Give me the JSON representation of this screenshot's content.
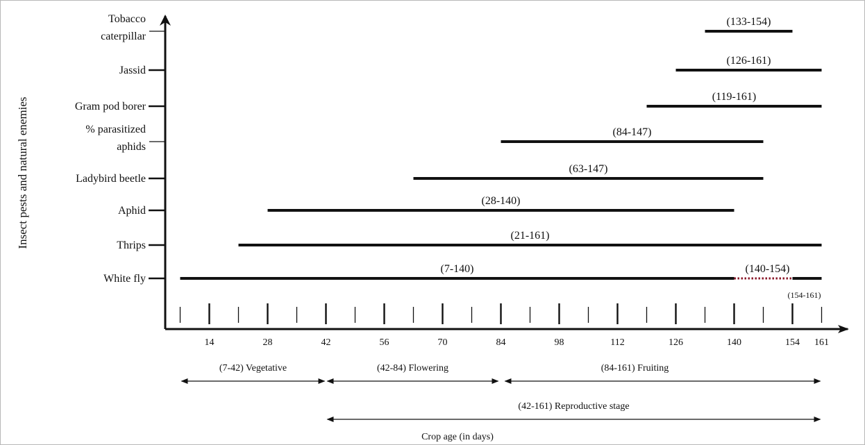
{
  "chart_data": {
    "type": "gantt",
    "ylabel": "Insect pests and natural enemies",
    "xlabel": "Crop age (in days)",
    "x_ticks": [
      14,
      28,
      42,
      56,
      70,
      84,
      98,
      112,
      126,
      140,
      154,
      161
    ],
    "xlim": [
      0,
      167
    ],
    "categories": [
      {
        "name": "Tobacco\ncaterpillar",
        "start": 133,
        "end": 154,
        "label": "(133-154)"
      },
      {
        "name": "Jassid",
        "start": 126,
        "end": 161,
        "label": "(126-161)"
      },
      {
        "name": "Gram pod borer",
        "start": 119,
        "end": 161,
        "label": "(119-161)"
      },
      {
        "name": "% parasitized\naphids",
        "start": 84,
        "end": 147,
        "label": "(84-147)"
      },
      {
        "name": "Ladybird beetle",
        "start": 63,
        "end": 147,
        "label": "(63-147)"
      },
      {
        "name": "Aphid",
        "start": 28,
        "end": 140,
        "label": "(28-140)"
      },
      {
        "name": "Thrips",
        "start": 21,
        "end": 161,
        "label": "(21-161)"
      },
      {
        "name": "White fly",
        "start": 7,
        "end": 140,
        "label": "(7-140)",
        "extra_segments": [
          {
            "start": 140,
            "end": 154,
            "label": "(140-154)",
            "style": "dotted",
            "color": "#8b1a2b"
          },
          {
            "start": 154,
            "end": 161,
            "label": "(154-161)",
            "style": "solid"
          }
        ]
      }
    ],
    "stages": [
      {
        "start": 7,
        "end": 42,
        "label": "(7-42) Vegetative"
      },
      {
        "start": 42,
        "end": 84,
        "label": "(42-84) Flowering"
      },
      {
        "start": 84,
        "end": 161,
        "label": "(84-161) Fruiting"
      },
      {
        "start": 42,
        "end": 161,
        "label": "(42-161) Reproductive stage"
      }
    ]
  }
}
